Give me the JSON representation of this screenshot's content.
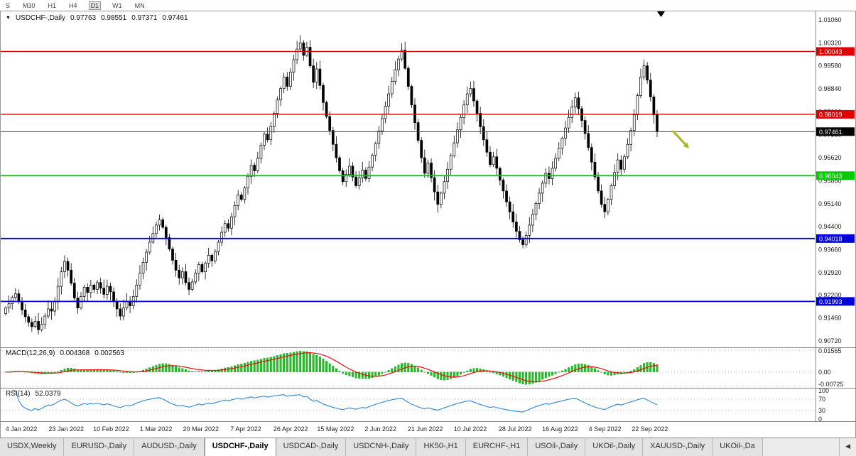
{
  "icons": {
    "dropdown": "▼",
    "scroll_left": "◀",
    "marker_down": "▼"
  },
  "toolbar": {
    "timeframes": [
      "S",
      "M30",
      "H1",
      "H4",
      "D1",
      "W1",
      "MN"
    ],
    "active_timeframe": "D1"
  },
  "header": {
    "symbol": "USDCHF-,Daily",
    "open": "0.97763",
    "high": "0.98551",
    "low": "0.97371",
    "close": "0.97461"
  },
  "price_axis": {
    "ticks": [
      "1.01060",
      "1.00320",
      "0.99580",
      "0.98840",
      "0.98100",
      "0.97360",
      "0.96620",
      "0.95880",
      "0.95140",
      "0.94400",
      "0.93660",
      "0.92920",
      "0.92200",
      "0.91460",
      "0.90720"
    ]
  },
  "levels": [
    {
      "price": 1.00043,
      "label": "1.00043",
      "color": "#e00000",
      "width": 1.3
    },
    {
      "price": 0.98019,
      "label": "0.98019",
      "color": "#e00000",
      "width": 1.3
    },
    {
      "price": 0.97461,
      "label": "0.97461",
      "color": "#444444",
      "width": 1,
      "box": "#000000"
    },
    {
      "price": 0.96043,
      "label": "0.96043",
      "color": "#00cc00",
      "width": 1.8
    },
    {
      "price": 0.94018,
      "label": "0.94018",
      "color": "#0000dd",
      "width": 1.8
    },
    {
      "price": 0.91993,
      "label": "0.91993",
      "color": "#0000dd",
      "width": 1.8
    }
  ],
  "indicators": {
    "macd": {
      "label": "MACD(12,26,9)",
      "value1": "0.004368",
      "value2": "0.002563",
      "axis_labels": [
        "0.01565",
        "0.00",
        "-0.00725"
      ],
      "histogram_color": "#1ec41e",
      "signal_color": "#e01010"
    },
    "rsi": {
      "label": "RSI(14)",
      "value": "52.0379",
      "axis_labels": [
        "100",
        "70",
        "30",
        "0"
      ],
      "guide_levels": [
        70,
        30
      ],
      "line_color": "#3d8fd8"
    }
  },
  "date_axis": {
    "labels": [
      "4 Jan 2022",
      "23 Jan 2022",
      "10 Feb 2022",
      "1 Mar 2022",
      "20 Mar 2022",
      "7 Apr 2022",
      "26 Apr 2022",
      "15 May 2022",
      "2 Jun 2022",
      "21 Jun 2022",
      "10 Jul 2022",
      "28 Jul 2022",
      "16 Aug 2022",
      "4 Sep 2022",
      "22 Sep 2022"
    ]
  },
  "annotations": {
    "arrow_color": "#aab61e",
    "marker_color": "#000000"
  },
  "tabs": {
    "items": [
      {
        "label": "USDX,Weekly"
      },
      {
        "label": "EURUSD-,Daily"
      },
      {
        "label": "AUDUSD-,Daily"
      },
      {
        "label": "USDCHF-,Daily",
        "active": true
      },
      {
        "label": "USDCAD-,Daily"
      },
      {
        "label": "USDCNH-,Daily"
      },
      {
        "label": "HK50-,H1"
      },
      {
        "label": "EURCHF-,H1"
      },
      {
        "label": "USOil-,Daily"
      },
      {
        "label": "UKOil-,Daily"
      },
      {
        "label": "XAUUSD-,Daily"
      },
      {
        "label": "UKOil-,Da"
      }
    ]
  },
  "chart_data": {
    "type": "candlestick",
    "title": "USDCHF-,Daily",
    "x_labels": [
      "4 Jan 2022",
      "23 Jan 2022",
      "10 Feb 2022",
      "1 Mar 2022",
      "20 Mar 2022",
      "7 Apr 2022",
      "26 Apr 2022",
      "15 May 2022",
      "2 Jun 2022",
      "21 Jun 2022",
      "10 Jul 2022",
      "28 Jul 2022",
      "16 Aug 2022",
      "4 Sep 2022",
      "22 Sep 2022"
    ],
    "ylim": [
      0.9072,
      1.0106
    ],
    "first_open": 0.916,
    "closes": [
      0.9178,
      0.9192,
      0.9212,
      0.9224,
      0.9198,
      0.9172,
      0.915,
      0.9132,
      0.9118,
      0.9135,
      0.9108,
      0.9125,
      0.9152,
      0.9175,
      0.9168,
      0.9198,
      0.9248,
      0.9295,
      0.9328,
      0.93,
      0.9258,
      0.921,
      0.9178,
      0.9215,
      0.9245,
      0.9228,
      0.9252,
      0.9238,
      0.926,
      0.9242,
      0.9222,
      0.9248,
      0.923,
      0.92,
      0.9175,
      0.9152,
      0.9178,
      0.92,
      0.9185,
      0.9215,
      0.9252,
      0.929,
      0.9325,
      0.9358,
      0.939,
      0.9418,
      0.9445,
      0.9462,
      0.9438,
      0.9405,
      0.9368,
      0.9332,
      0.93,
      0.9275,
      0.9295,
      0.926,
      0.9238,
      0.9262,
      0.929,
      0.9318,
      0.9295,
      0.9322,
      0.9348,
      0.933,
      0.936,
      0.939,
      0.9422,
      0.945,
      0.9435,
      0.9472,
      0.9508,
      0.9542,
      0.9528,
      0.9565,
      0.9602,
      0.9638,
      0.962,
      0.966,
      0.9702,
      0.9738,
      0.972,
      0.9762,
      0.9805,
      0.9848,
      0.9885,
      0.9922,
      0.9892,
      0.9938,
      0.9978,
      1.0012,
      1.0032,
      0.9992,
      1.0018,
      0.9958,
      0.9905,
      0.9948,
      0.9895,
      0.984,
      0.9795,
      0.975,
      0.9705,
      0.9662,
      0.962,
      0.9585,
      0.9608,
      0.9635,
      0.96,
      0.9572,
      0.9598,
      0.9622,
      0.9595,
      0.9632,
      0.967,
      0.9708,
      0.9748,
      0.9788,
      0.9828,
      0.9868,
      0.9908,
      0.9945,
      0.998,
      1.0008,
      0.995,
      0.9892,
      0.9832,
      0.9775,
      0.9718,
      0.9662,
      0.9612,
      0.9645,
      0.9598,
      0.9552,
      0.9512,
      0.9548,
      0.9585,
      0.9625,
      0.9668,
      0.971,
      0.9752,
      0.9792,
      0.9832,
      0.9868,
      0.9885,
      0.9845,
      0.9805,
      0.9762,
      0.972,
      0.968,
      0.964,
      0.9665,
      0.9628,
      0.959,
      0.9555,
      0.952,
      0.9488,
      0.9455,
      0.9425,
      0.9398,
      0.9382,
      0.9412,
      0.9445,
      0.948,
      0.9515,
      0.9548,
      0.958,
      0.9612,
      0.9595,
      0.9628,
      0.966,
      0.9692,
      0.9725,
      0.9758,
      0.9792,
      0.9825,
      0.9855,
      0.982,
      0.9782,
      0.974,
      0.9695,
      0.9648,
      0.96,
      0.9555,
      0.9512,
      0.9488,
      0.9528,
      0.9572,
      0.9615,
      0.9655,
      0.9625,
      0.9665,
      0.9705,
      0.975,
      0.98,
      0.9862,
      0.9922,
      0.9958,
      0.9912,
      0.9858,
      0.98,
      0.9746
    ],
    "levels": [
      1.00043,
      0.98019,
      0.97461,
      0.96043,
      0.94018,
      0.91993
    ],
    "indicators": [
      {
        "type": "macd",
        "params": [
          12,
          26,
          9
        ],
        "current": [
          0.004368,
          0.002563
        ]
      },
      {
        "type": "rsi",
        "params": [
          14
        ],
        "current": 52.0379
      }
    ]
  }
}
